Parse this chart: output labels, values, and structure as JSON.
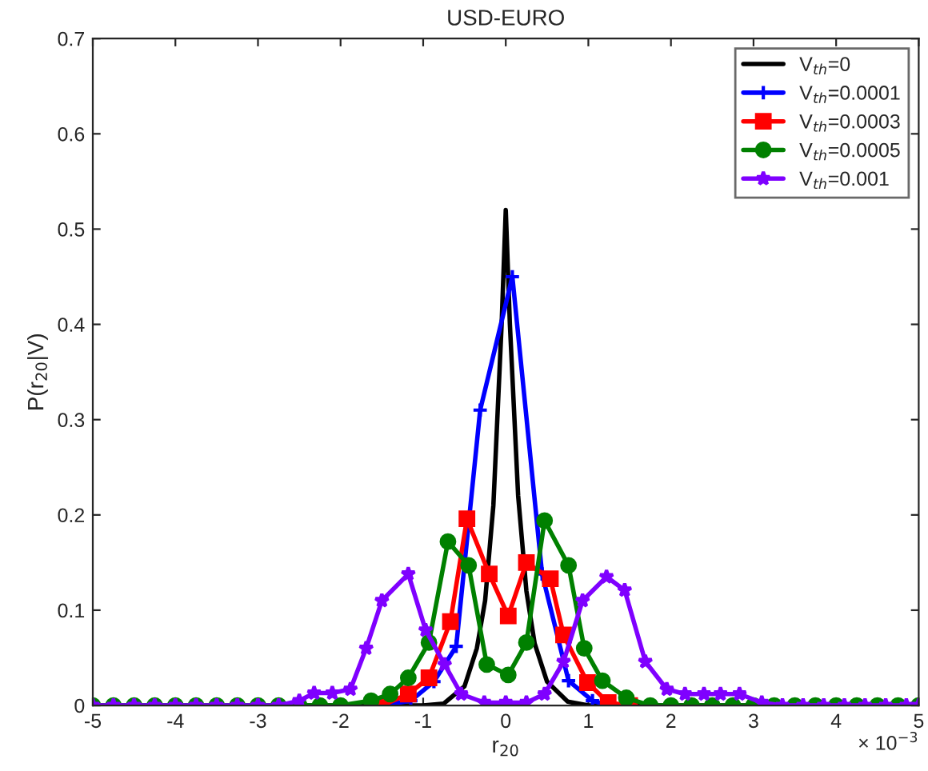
{
  "chart_data": {
    "type": "line",
    "title": "USD-EURO",
    "xlabel": "r$_{20}$",
    "ylabel": "P(r$_{20}$|V)",
    "annotations": [
      "× 10$^{−3}$"
    ],
    "xlim": [
      -5,
      5
    ],
    "xticks": [
      -5,
      -4,
      -3,
      -2,
      -1,
      0,
      1,
      2,
      3,
      4,
      5
    ],
    "ylim": [
      0,
      0.7
    ],
    "yticks": [
      0,
      0.1,
      0.2,
      0.3,
      0.4,
      0.5,
      0.6,
      0.7
    ],
    "grid": false,
    "legend": "top right",
    "line_style": "solid",
    "series": [
      {
        "name": "V$_{th}$=0",
        "color": "#000000",
        "marker": "none",
        "x": [
          -5,
          -1,
          -0.75,
          -0.5,
          -0.35,
          -0.25,
          -0.15,
          -0.05,
          0,
          0.05,
          0.15,
          0.25,
          0.35,
          0.5,
          0.75,
          1,
          5
        ],
        "values": [
          0,
          0,
          0.002,
          0.02,
          0.06,
          0.11,
          0.21,
          0.4,
          0.52,
          0.4,
          0.22,
          0.12,
          0.065,
          0.025,
          0.004,
          0,
          0
        ]
      },
      {
        "name": "V$_{th}$=0.0001",
        "color": "#0000ff",
        "marker": "cross",
        "x": [
          -1.5,
          -1.15,
          -0.87,
          -0.6,
          -0.31,
          0.08,
          0.44,
          0.76,
          1.05,
          1.25
        ],
        "values": [
          0,
          0.005,
          0.025,
          0.062,
          0.31,
          0.45,
          0.138,
          0.026,
          0.005,
          0
        ]
      },
      {
        "name": "V$_{th}$=0.0003",
        "color": "#ff0000",
        "marker": "square",
        "x": [
          -1.5,
          -1.18,
          -0.93,
          -0.67,
          -0.47,
          -0.2,
          0.03,
          0.25,
          0.54,
          0.7,
          0.99,
          1.24,
          1.5
        ],
        "values": [
          0,
          0.012,
          0.029,
          0.088,
          0.196,
          0.138,
          0.094,
          0.15,
          0.133,
          0.074,
          0.024,
          0.003,
          0
        ]
      },
      {
        "name": "V$_{th}$=0.0005",
        "color": "#008000",
        "marker": "circle",
        "x": [
          -5,
          -4.75,
          -4.5,
          -4.25,
          -4,
          -3.75,
          -3.5,
          -3.25,
          -3,
          -2.75,
          -2.5,
          -2.25,
          -2,
          -1.63,
          -1.4,
          -1.18,
          -0.93,
          -0.7,
          -0.45,
          -0.23,
          0.03,
          0.25,
          0.47,
          0.76,
          0.95,
          1.17,
          1.46,
          1.75,
          2,
          2.25,
          2.5,
          2.75,
          3,
          3.25,
          3.5,
          3.75,
          4,
          4.25,
          4.5,
          4.75,
          5
        ],
        "values": [
          0,
          0,
          0,
          0,
          0,
          0,
          0,
          0,
          0,
          0,
          0,
          0,
          0,
          0.005,
          0.012,
          0.029,
          0.066,
          0.172,
          0.147,
          0.043,
          0.032,
          0.066,
          0.194,
          0.147,
          0.06,
          0.026,
          0.008,
          0,
          0,
          0,
          0,
          0,
          0,
          0,
          0,
          0,
          0,
          0,
          0,
          0,
          0
        ]
      },
      {
        "name": "V$_{th}$=0.001",
        "color": "#7f00ff",
        "marker": "star",
        "x": [
          -5,
          -4.75,
          -4.5,
          -4.25,
          -4,
          -3.75,
          -3.5,
          -3.25,
          -3,
          -2.75,
          -2.5,
          -2.32,
          -2.1,
          -1.88,
          -1.69,
          -1.5,
          -1.18,
          -0.97,
          -0.74,
          -0.54,
          -0.26,
          0,
          0.25,
          0.47,
          0.7,
          0.93,
          1.22,
          1.44,
          1.69,
          1.95,
          2.17,
          2.4,
          2.6,
          2.83,
          3.1,
          3.35,
          3.6,
          3.85,
          4.1,
          4.35,
          4.6,
          4.85,
          5
        ],
        "values": [
          0,
          0,
          0,
          0,
          0,
          0,
          0,
          0,
          0,
          0,
          0.005,
          0.013,
          0.013,
          0.017,
          0.06,
          0.11,
          0.138,
          0.079,
          0.043,
          0.012,
          0.003,
          0.003,
          0.003,
          0.012,
          0.046,
          0.11,
          0.135,
          0.121,
          0.046,
          0.017,
          0.012,
          0.012,
          0.012,
          0.012,
          0.003,
          0,
          0,
          0,
          0,
          0,
          0,
          0,
          0
        ]
      }
    ]
  }
}
